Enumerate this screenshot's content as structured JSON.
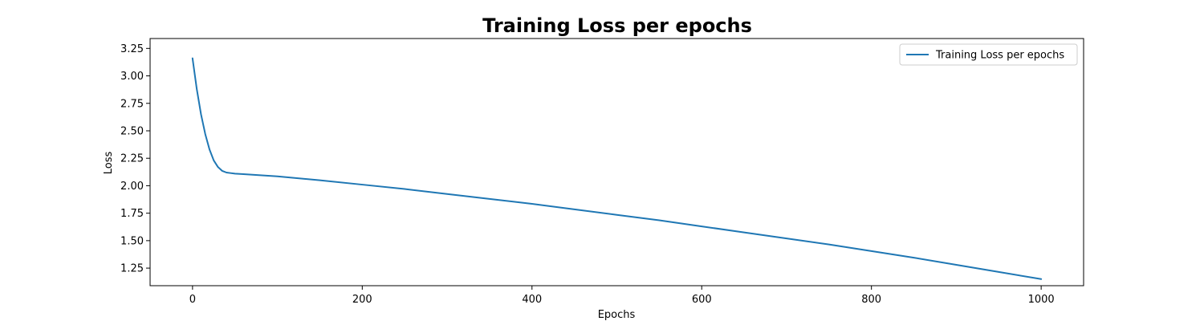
{
  "chart_data": {
    "type": "line",
    "title": "Training Loss per epochs",
    "xlabel": "Epochs",
    "ylabel": "Loss",
    "xlim": [
      -50,
      1050
    ],
    "ylim": [
      1.09,
      3.34
    ],
    "xticks": [
      0,
      200,
      400,
      600,
      800,
      1000
    ],
    "xtick_labels": [
      "0",
      "200",
      "400",
      "600",
      "800",
      "1000"
    ],
    "yticks": [
      1.25,
      1.5,
      1.75,
      2.0,
      2.25,
      2.5,
      2.75,
      3.0,
      3.25
    ],
    "ytick_labels": [
      "1.25",
      "1.50",
      "1.75",
      "2.00",
      "2.25",
      "2.50",
      "2.75",
      "3.00",
      "3.25"
    ],
    "grid": false,
    "legend": {
      "position": "top-right",
      "entries": [
        "Training Loss per epochs"
      ]
    },
    "series": [
      {
        "name": "Training Loss per epochs",
        "color": "#1f77b4",
        "x": [
          0,
          5,
          10,
          15,
          20,
          25,
          30,
          35,
          40,
          45,
          50,
          60,
          80,
          100,
          150,
          200,
          250,
          300,
          350,
          400,
          450,
          500,
          550,
          600,
          650,
          700,
          750,
          800,
          850,
          900,
          950,
          1000
        ],
        "y": [
          3.16,
          2.88,
          2.65,
          2.47,
          2.33,
          2.23,
          2.17,
          2.135,
          2.12,
          2.115,
          2.11,
          2.105,
          2.095,
          2.085,
          2.05,
          2.01,
          1.97,
          1.925,
          1.88,
          1.835,
          1.785,
          1.735,
          1.685,
          1.63,
          1.575,
          1.52,
          1.465,
          1.405,
          1.345,
          1.28,
          1.215,
          1.15
        ]
      }
    ]
  }
}
